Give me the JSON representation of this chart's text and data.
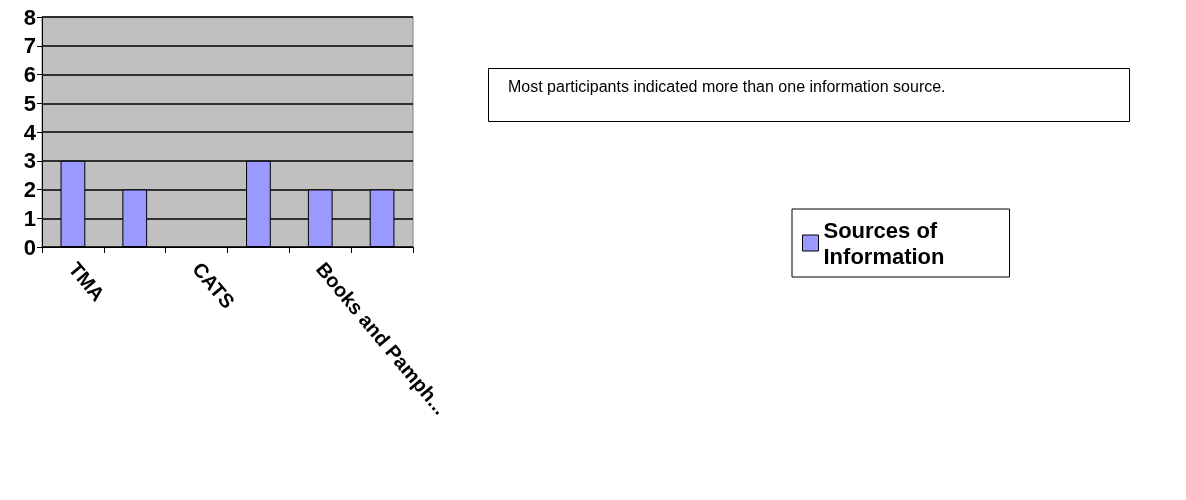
{
  "chart_data": {
    "type": "bar",
    "categories": [
      "TMA",
      null,
      "CATS",
      null,
      "Books and Pamph...",
      null
    ],
    "series": [
      {
        "name": "Sources of Information",
        "color": "#9999ff",
        "values": [
          3,
          2,
          null,
          3,
          2,
          2
        ]
      }
    ],
    "ylim": [
      0,
      8
    ],
    "yticks": [
      0,
      1,
      2,
      3,
      4,
      5,
      6,
      7,
      8
    ],
    "grid": "y",
    "legend": "right",
    "annotations": [
      "Most participants indicated more than one information source."
    ]
  }
}
